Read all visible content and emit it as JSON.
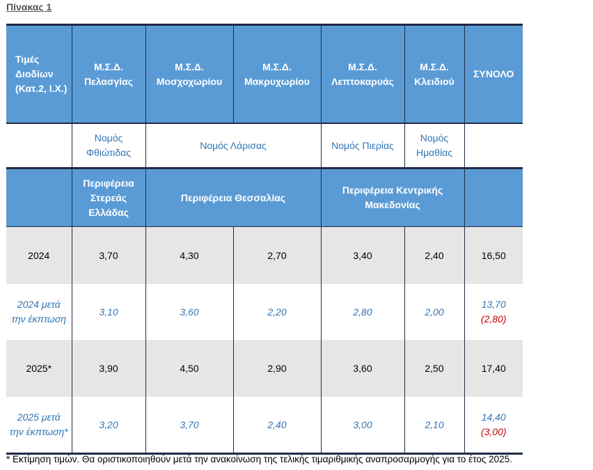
{
  "title": "Πίνακας 1",
  "headers": {
    "first": "Τιμές Διοδίων (Κατ.2, Ι.Χ.)",
    "stations": [
      "Μ.Σ.Δ. Πελασγίας",
      "Μ.Σ.Δ. Μοσχοχωρίου",
      "Μ.Σ.Δ. Μακρυχωρίου",
      "Μ.Σ.Δ. Λεπτοκαρυάς",
      "Μ.Σ.Δ. Κλειδιού"
    ],
    "total": "ΣΥΝΟΛΟ"
  },
  "prefectures": [
    "Νομός Φθιώτιδας",
    "Νομός Λάρισας",
    "Νομός Πιερίας",
    "Νομός Ημαθίας"
  ],
  "regions": [
    "Περιφέρεια Στερεάς Ελλάδας",
    "Περιφέρεια Θεσσαλίας",
    "Περιφέρεια Κεντρικής Μακεδονίας"
  ],
  "rows": [
    {
      "label": "2024",
      "values": [
        "3,70",
        "4,30",
        "2,70",
        "3,40",
        "2,40"
      ],
      "total": "16,50"
    },
    {
      "label": "2024 μετά την έκπτωση",
      "values": [
        "3,10",
        "3,60",
        "2,20",
        "2,80",
        "2,00"
      ],
      "total": "13,70",
      "discount": "(2,80)"
    },
    {
      "label": "2025*",
      "values": [
        "3,90",
        "4,50",
        "2,90",
        "3,60",
        "2,50"
      ],
      "total": "17,40"
    },
    {
      "label": "2025 μετά την έκπτωση*",
      "values": [
        "3,20",
        "3,70",
        "2,40",
        "3,00",
        "2,10"
      ],
      "total": "14,40",
      "discount": "(3,00)"
    }
  ],
  "footnote": "* Εκτίμηση τιμών. Θα οριστικοποιηθούν μετά την ανακοίνωση της τελικής τιμαριθμικής αναπροσαρμογής για το έτος 2025.",
  "colors": {
    "header_bg": "#5b9bd5",
    "blue_text": "#2e75b6",
    "discount_red": "#c00000",
    "grey_row": "#e7e6e6"
  }
}
